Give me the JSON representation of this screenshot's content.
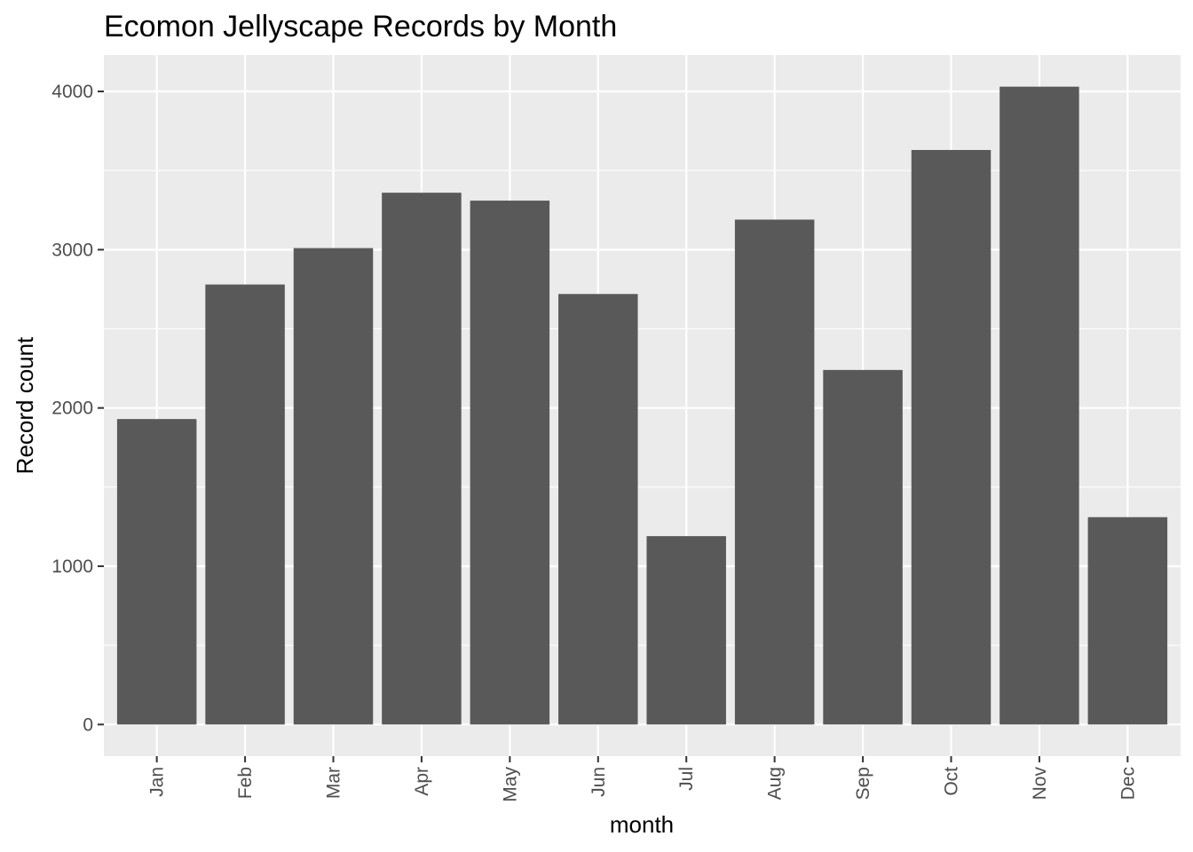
{
  "chart_data": {
    "type": "bar",
    "title": "Ecomon Jellyscape Records by Month",
    "xlabel": "month",
    "ylabel": "Record count",
    "categories": [
      "Jan",
      "Feb",
      "Mar",
      "Apr",
      "May",
      "Jun",
      "Jul",
      "Aug",
      "Sep",
      "Oct",
      "Nov",
      "Dec"
    ],
    "values": [
      1930,
      2780,
      3010,
      3360,
      3310,
      2720,
      1190,
      3190,
      2240,
      3630,
      4030,
      1310
    ],
    "ylim": [
      -200,
      4230
    ],
    "yticks": [
      0,
      1000,
      2000,
      3000,
      4000
    ],
    "grid": true,
    "colors": {
      "bar": "#595959",
      "panel": "#ebebeb",
      "grid": "#ffffff",
      "tick": "#333333"
    }
  }
}
